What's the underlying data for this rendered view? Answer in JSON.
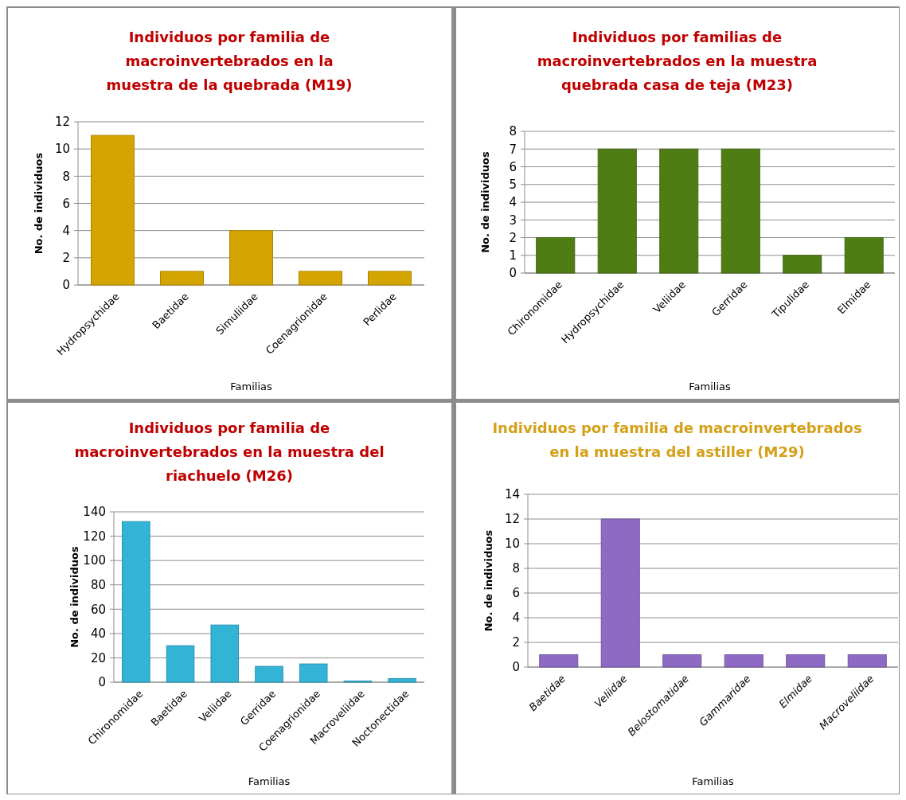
{
  "chart_data": [
    {
      "type": "bar",
      "title": "Individuos por familia de macroinvertebrados en la muestra de la quebrada (M19)",
      "xlabel": "Familias",
      "ylabel": "No. de individuos",
      "categories": [
        "Hydropsychidae",
        "Baetidae",
        "Simuliidae",
        "Coenagrionidae",
        "Perlidae"
      ],
      "values": [
        11,
        1,
        4,
        1,
        1
      ],
      "color": "#d4a500",
      "ylim": [
        0,
        12
      ],
      "yticks": [
        0,
        2,
        4,
        6,
        8,
        10,
        12
      ],
      "grid": "y"
    },
    {
      "type": "bar",
      "title": "Individuos por familias de macroinvertebrados en la muestra quebrada casa de teja (M23)",
      "xlabel": "Familias",
      "ylabel": "No. de individuos",
      "categories": [
        "Chironomidae",
        "Hydropsychidae",
        "Veliidae",
        "Gerridae",
        "Tipulidae",
        "Elmidae"
      ],
      "values": [
        2,
        7,
        7,
        7,
        1,
        2
      ],
      "color": "#4e7d14",
      "ylim": [
        0,
        8
      ],
      "yticks": [
        0,
        1,
        2,
        3,
        4,
        5,
        6,
        7,
        8
      ],
      "grid": "y"
    },
    {
      "type": "bar",
      "title": "Individuos por familia de macroinvertebrados en la muestra del riachuelo (M26)",
      "xlabel": "Familias",
      "ylabel": "No. de individuos",
      "categories": [
        "Chironomidae",
        "Baetidae",
        "Veliidae",
        "Gerridae",
        "Coenagrionidae",
        "Macroveliidae",
        "Noctonectidae"
      ],
      "values": [
        132,
        30,
        47,
        13,
        15,
        1,
        3
      ],
      "color": "#33b3d6",
      "ylim": [
        0,
        140
      ],
      "yticks": [
        0,
        20,
        40,
        60,
        80,
        100,
        120,
        140
      ],
      "grid": "y"
    },
    {
      "type": "bar",
      "title": "Individuos por familia de macroinvertebrados en la muestra del astiller (M29)",
      "xlabel": "Familias",
      "ylabel": "No. de individuos",
      "categories": [
        "Baetidae",
        "Veliidae",
        "Belostomatidae",
        "Gammaridae",
        "Elmidae",
        "Macroveliidae"
      ],
      "values": [
        1,
        12,
        1,
        1,
        1,
        1
      ],
      "color": "#8e6ac4",
      "ylim": [
        0,
        14
      ],
      "yticks": [
        0,
        2,
        4,
        6,
        8,
        10,
        12,
        14
      ],
      "grid": "y"
    }
  ]
}
